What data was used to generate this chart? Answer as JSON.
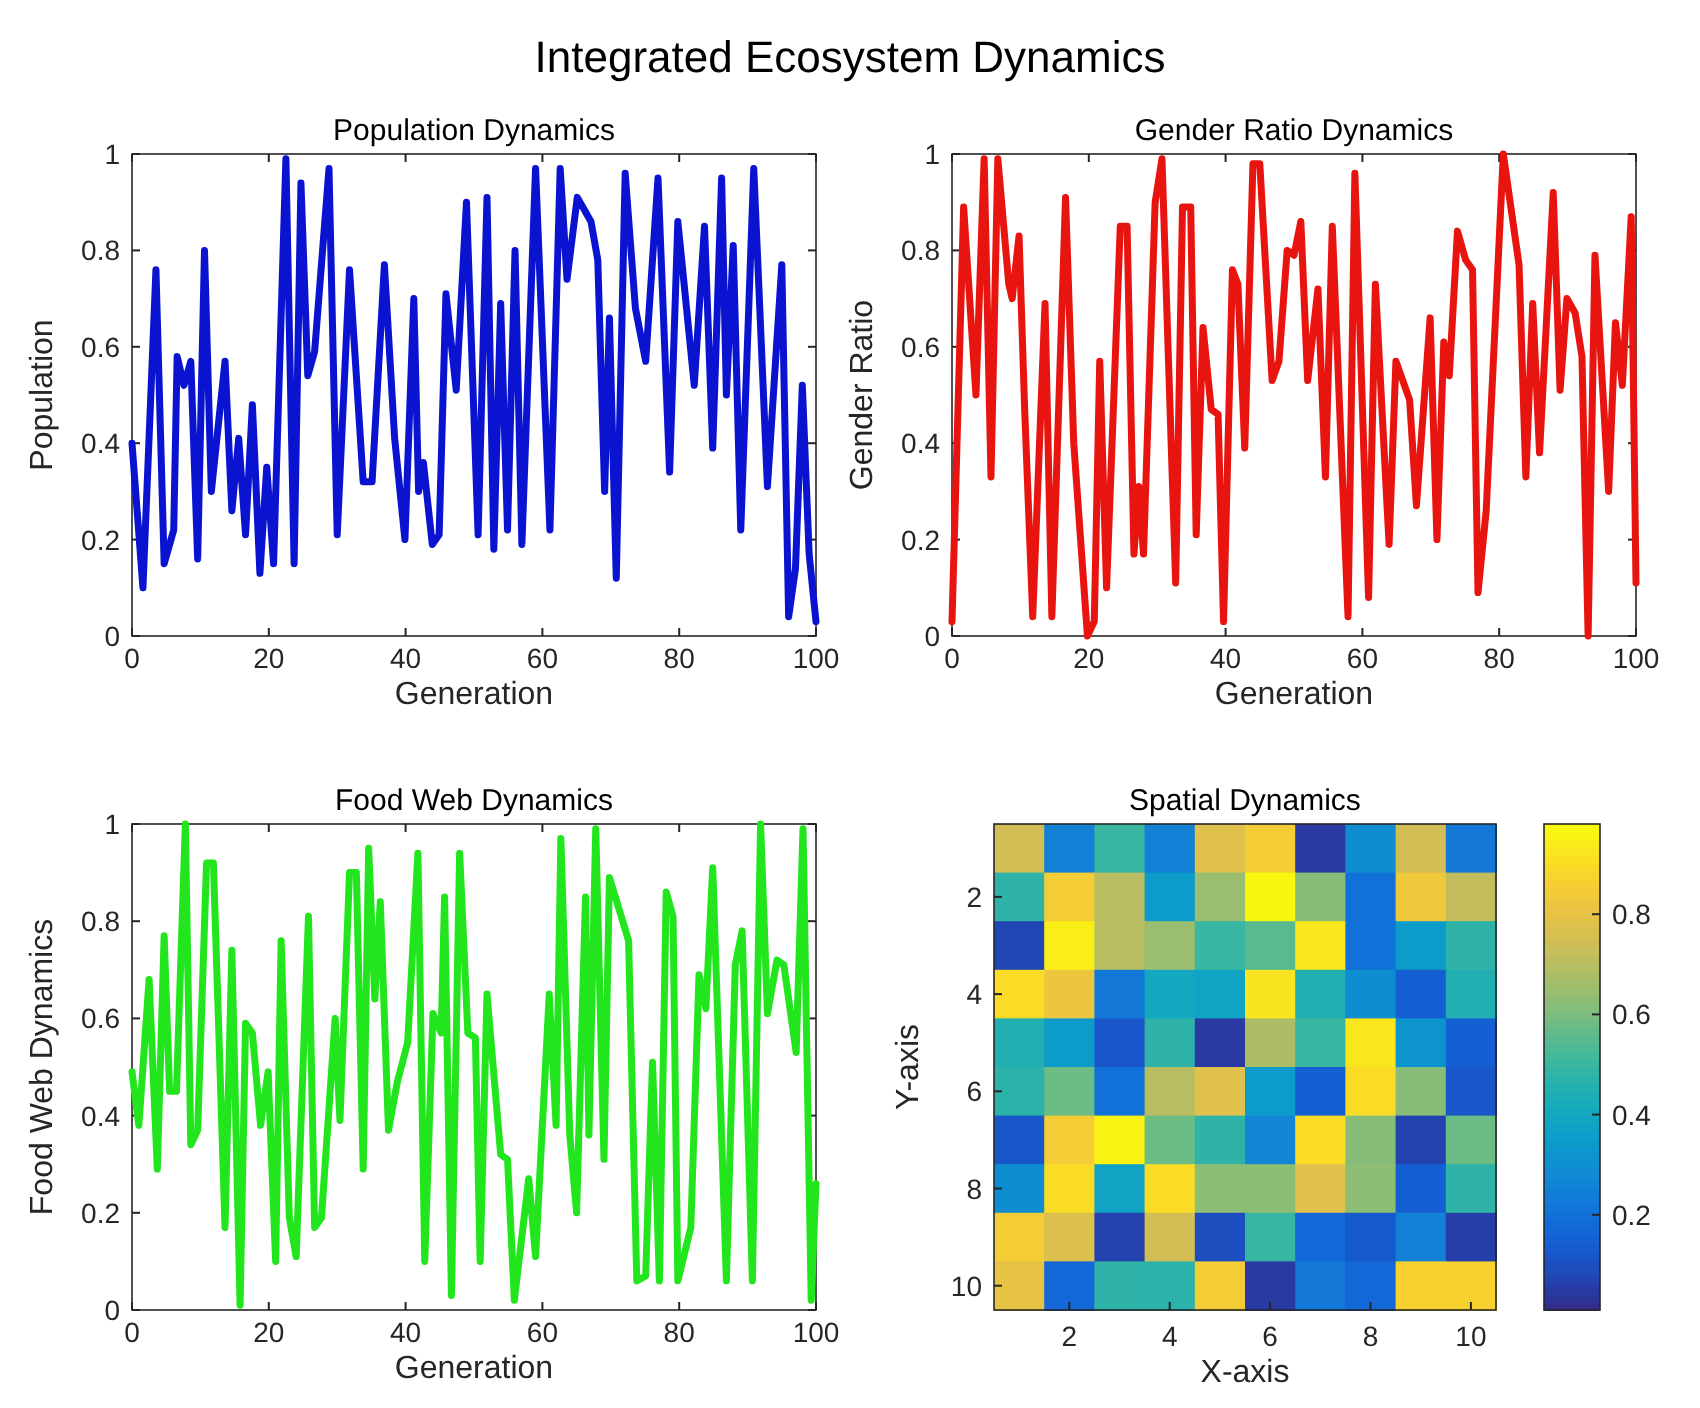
{
  "chart_data": [
    {
      "type": "other",
      "title": "Integrated Ecosystem Dynamics"
    },
    {
      "type": "line",
      "title": "Population Dynamics",
      "xlabel": "Generation",
      "ylabel": "Population",
      "xlim": [
        0,
        100
      ],
      "ylim": [
        0,
        1
      ],
      "xticks": [
        0,
        20,
        40,
        60,
        80,
        100
      ],
      "yticks": [
        0,
        0.2,
        0.4,
        0.6,
        0.8,
        1
      ],
      "marker": "none",
      "line_style": "solid",
      "series": [
        {
          "color": "#0a14d0",
          "x": [
            0,
            1.6,
            3.5,
            4.7,
            6.1,
            6.6,
            7.6,
            8.6,
            9.6,
            10.6,
            11.6,
            13.6,
            14.6,
            15.6,
            16.6,
            17.6,
            18.7,
            19.7,
            20.7,
            22.5,
            23.7,
            24.7,
            25.7,
            26.7,
            28.8,
            30.0,
            31.8,
            33.8,
            35.1,
            36.9,
            38.4,
            39.9,
            41.2,
            41.9,
            42.6,
            43.9,
            44.9,
            45.9,
            47.4,
            48.9,
            50.6,
            51.9,
            52.9,
            53.9,
            54.9,
            56.0,
            57.0,
            59.0,
            61.1,
            62.6,
            63.6,
            65.1,
            67.1,
            68.1,
            69.1,
            69.8,
            70.8,
            72.1,
            73.6,
            75.1,
            76.9,
            78.6,
            79.8,
            82.2,
            83.7,
            84.9,
            86.2,
            86.9,
            87.9,
            89.0,
            90.9,
            92.9,
            95.0,
            96.0,
            97.0,
            98.0,
            99.0,
            100
          ],
          "values": [
            0.4,
            0.1,
            0.76,
            0.15,
            0.22,
            0.58,
            0.52,
            0.57,
            0.16,
            0.8,
            0.3,
            0.57,
            0.26,
            0.41,
            0.21,
            0.48,
            0.13,
            0.35,
            0.15,
            0.99,
            0.15,
            0.94,
            0.54,
            0.59,
            0.97,
            0.21,
            0.76,
            0.32,
            0.32,
            0.77,
            0.41,
            0.2,
            0.7,
            0.3,
            0.36,
            0.19,
            0.21,
            0.71,
            0.51,
            0.9,
            0.21,
            0.91,
            0.18,
            0.69,
            0.22,
            0.8,
            0.19,
            0.97,
            0.22,
            0.97,
            0.74,
            0.91,
            0.86,
            0.78,
            0.3,
            0.66,
            0.12,
            0.96,
            0.68,
            0.57,
            0.95,
            0.34,
            0.86,
            0.52,
            0.85,
            0.39,
            0.95,
            0.5,
            0.81,
            0.22,
            0.97,
            0.31,
            0.77,
            0.04,
            0.14,
            0.52,
            0.17,
            0.03
          ]
        }
      ]
    },
    {
      "type": "line",
      "title": "Gender Ratio Dynamics",
      "xlabel": "Generation",
      "ylabel": "Gender Ratio",
      "xlim": [
        0,
        100
      ],
      "ylim": [
        0,
        1
      ],
      "xticks": [
        0,
        20,
        40,
        60,
        80,
        100
      ],
      "yticks": [
        0,
        0.2,
        0.4,
        0.6,
        0.8,
        1
      ],
      "marker": "none",
      "line_style": "solid",
      "series": [
        {
          "color": "#e8140f",
          "x": [
            0,
            1.7,
            3.5,
            4.7,
            5.7,
            6.7,
            8.3,
            8.8,
            9.8,
            10.6,
            11.8,
            13.6,
            14.6,
            16.6,
            17.8,
            19.8,
            20.8,
            21.6,
            22.6,
            24.6,
            25.6,
            26.6,
            27.3,
            28.0,
            29.7,
            30.7,
            32.7,
            33.7,
            34.9,
            35.7,
            36.7,
            37.9,
            38.9,
            39.7,
            41.0,
            41.8,
            42.8,
            44.0,
            45.0,
            46.8,
            47.8,
            49.0,
            50.0,
            51.0,
            52.0,
            53.5,
            54.6,
            55.6,
            57.9,
            58.9,
            60.9,
            61.9,
            63.9,
            64.9,
            66.9,
            67.9,
            69.9,
            70.9,
            71.9,
            72.7,
            73.9,
            75.1,
            76.1,
            76.9,
            78.1,
            80.6,
            82.9,
            83.9,
            84.9,
            85.9,
            87.9,
            88.9,
            89.9,
            91.1,
            92.1,
            93.0,
            94.0,
            96.0,
            97.0,
            98.0,
            99.3,
            100
          ],
          "values": [
            0.03,
            0.89,
            0.5,
            0.99,
            0.33,
            0.99,
            0.73,
            0.7,
            0.83,
            0.48,
            0.04,
            0.69,
            0.04,
            0.91,
            0.4,
            0.0,
            0.03,
            0.57,
            0.1,
            0.85,
            0.85,
            0.17,
            0.31,
            0.17,
            0.9,
            0.99,
            0.11,
            0.89,
            0.89,
            0.21,
            0.64,
            0.47,
            0.46,
            0.03,
            0.76,
            0.73,
            0.39,
            0.98,
            0.98,
            0.53,
            0.57,
            0.8,
            0.79,
            0.86,
            0.53,
            0.72,
            0.33,
            0.85,
            0.04,
            0.96,
            0.08,
            0.73,
            0.19,
            0.57,
            0.49,
            0.27,
            0.66,
            0.2,
            0.61,
            0.54,
            0.84,
            0.78,
            0.76,
            0.09,
            0.26,
            1.0,
            0.77,
            0.33,
            0.69,
            0.38,
            0.92,
            0.51,
            0.7,
            0.67,
            0.58,
            0.0,
            0.79,
            0.3,
            0.65,
            0.52,
            0.87,
            0.11
          ]
        }
      ]
    },
    {
      "type": "line",
      "title": "Food Web Dynamics",
      "xlabel": "Generation",
      "ylabel": "Food Web Dynamics",
      "xlim": [
        0,
        100
      ],
      "ylim": [
        0,
        1
      ],
      "xticks": [
        0,
        20,
        40,
        60,
        80,
        100
      ],
      "yticks": [
        0,
        0.2,
        0.4,
        0.6,
        0.8,
        1
      ],
      "marker": "none",
      "line_style": "solid",
      "series": [
        {
          "color": "#22e51e",
          "x": [
            0,
            1.0,
            2.5,
            3.7,
            4.7,
            5.5,
            6.5,
            7.8,
            8.6,
            9.6,
            10.9,
            11.9,
            13.6,
            14.6,
            15.8,
            16.6,
            17.6,
            18.8,
            19.9,
            21.0,
            21.8,
            23.0,
            24.0,
            25.8,
            26.7,
            27.7,
            29.7,
            30.4,
            31.8,
            32.8,
            33.8,
            34.6,
            35.5,
            36.3,
            37.5,
            38.8,
            40.3,
            41.8,
            42.8,
            44.0,
            45.2,
            45.7,
            46.7,
            47.9,
            49.1,
            50.2,
            50.9,
            51.9,
            53.9,
            54.9,
            55.9,
            58.0,
            59.0,
            61.0,
            62.0,
            62.7,
            64.0,
            65.0,
            66.3,
            66.8,
            67.8,
            69.0,
            69.8,
            72.6,
            73.8,
            75.1,
            76.1,
            77.1,
            78.1,
            79.1,
            79.8,
            81.7,
            82.9,
            83.9,
            84.9,
            86.9,
            88.2,
            89.2,
            90.7,
            91.9,
            92.9,
            94.3,
            95.3,
            97.1,
            98.1,
            99.3,
            100
          ],
          "values": [
            0.49,
            0.38,
            0.68,
            0.29,
            0.77,
            0.45,
            0.45,
            1.0,
            0.34,
            0.37,
            0.92,
            0.92,
            0.17,
            0.74,
            0.01,
            0.59,
            0.57,
            0.38,
            0.49,
            0.1,
            0.76,
            0.19,
            0.11,
            0.81,
            0.17,
            0.19,
            0.6,
            0.39,
            0.9,
            0.9,
            0.29,
            0.95,
            0.64,
            0.84,
            0.37,
            0.47,
            0.55,
            0.94,
            0.1,
            0.61,
            0.57,
            0.85,
            0.03,
            0.94,
            0.57,
            0.56,
            0.1,
            0.65,
            0.32,
            0.31,
            0.02,
            0.27,
            0.11,
            0.65,
            0.38,
            0.97,
            0.36,
            0.2,
            0.85,
            0.36,
            0.99,
            0.31,
            0.89,
            0.76,
            0.06,
            0.07,
            0.51,
            0.06,
            0.86,
            0.81,
            0.06,
            0.17,
            0.69,
            0.62,
            0.91,
            0.06,
            0.71,
            0.78,
            0.06,
            1.0,
            0.61,
            0.72,
            0.71,
            0.53,
            0.99,
            0.02,
            0.26
          ]
        }
      ]
    },
    {
      "type": "heatmap",
      "title": "Spatial Dynamics",
      "xlabel": "X-axis",
      "ylabel": "Y-axis",
      "categories": [
        null,
        "2",
        null,
        "4",
        null,
        "6",
        null,
        "8",
        null,
        "10"
      ],
      "y_categories": [
        null,
        "2",
        null,
        "4",
        null,
        "6",
        null,
        "8",
        null,
        "10"
      ],
      "clim": [
        0.01,
        0.98
      ],
      "cticks": [
        0.2,
        0.4,
        0.6,
        0.8
      ],
      "cells": [
        [
          0.75,
          0.25,
          0.5,
          0.25,
          0.78,
          0.85,
          0.05,
          0.3,
          0.75,
          0.22
        ],
        [
          0.48,
          0.85,
          0.7,
          0.35,
          0.65,
          0.97,
          0.62,
          0.2,
          0.83,
          0.72
        ],
        [
          0.08,
          0.95,
          0.7,
          0.65,
          0.5,
          0.55,
          0.93,
          0.2,
          0.35,
          0.48
        ],
        [
          0.9,
          0.82,
          0.22,
          0.4,
          0.38,
          0.92,
          0.45,
          0.3,
          0.15,
          0.45
        ],
        [
          0.45,
          0.35,
          0.12,
          0.48,
          0.05,
          0.68,
          0.5,
          0.93,
          0.32,
          0.15
        ],
        [
          0.47,
          0.58,
          0.2,
          0.7,
          0.78,
          0.35,
          0.15,
          0.9,
          0.62,
          0.12
        ],
        [
          0.12,
          0.85,
          0.96,
          0.58,
          0.48,
          0.27,
          0.9,
          0.62,
          0.07,
          0.58
        ],
        [
          0.3,
          0.9,
          0.38,
          0.9,
          0.63,
          0.63,
          0.78,
          0.63,
          0.15,
          0.48
        ],
        [
          0.85,
          0.77,
          0.07,
          0.75,
          0.1,
          0.5,
          0.17,
          0.13,
          0.25,
          0.06
        ],
        [
          0.8,
          0.17,
          0.48,
          0.47,
          0.85,
          0.05,
          0.22,
          0.17,
          0.87,
          0.87
        ]
      ]
    }
  ]
}
